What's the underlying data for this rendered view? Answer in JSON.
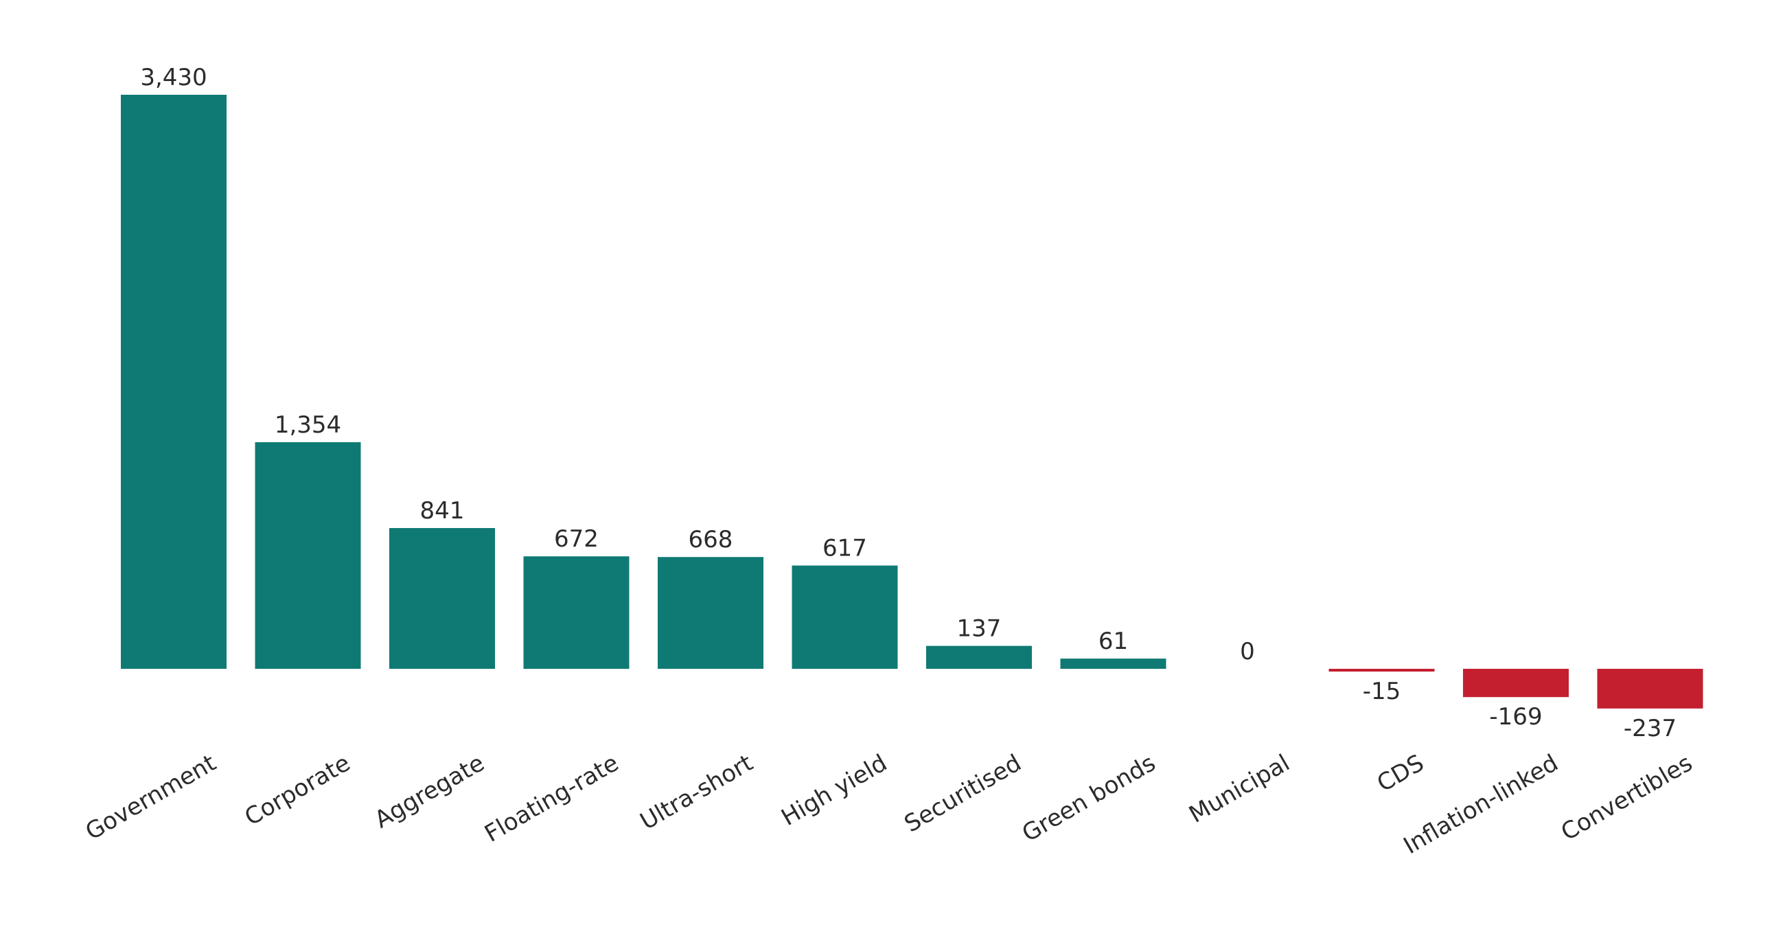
{
  "chart_data": {
    "type": "bar",
    "title": "",
    "xlabel": "",
    "ylabel": "",
    "categories": [
      "Government",
      "Corporate",
      "Aggregate",
      "Floating-rate",
      "Ultra-short",
      "High yield",
      "Securitised",
      "Green bonds",
      "Municipal",
      "CDS",
      "Inflation-linked",
      "Convertibles"
    ],
    "values": [
      3430,
      1354,
      841,
      672,
      668,
      617,
      137,
      61,
      0,
      -15,
      -169,
      -237
    ],
    "value_labels": [
      "3,430",
      "1,354",
      "841",
      "672",
      "668",
      "617",
      "137",
      "61",
      "0",
      "-15",
      "-169",
      "-237"
    ],
    "ylim": [
      -237,
      3430
    ],
    "grid": false,
    "legend": "none",
    "colors": {
      "positive": "#0f7a73",
      "negative": "#c41f2f",
      "text": "#2b2b2b"
    }
  }
}
